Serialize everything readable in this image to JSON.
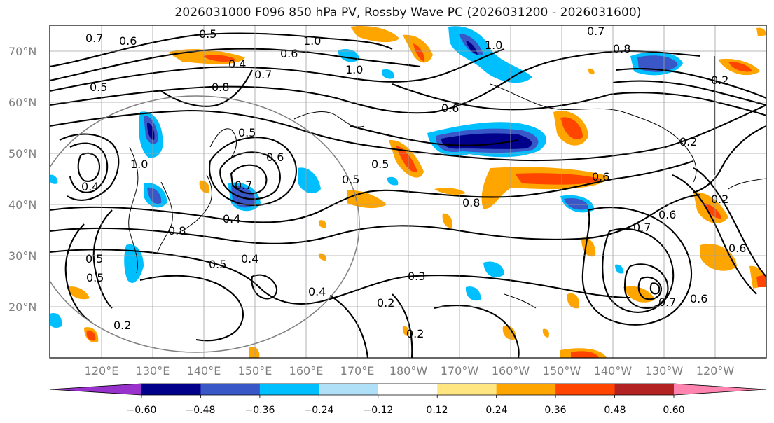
{
  "title": "2026031000 F096 850 hPa PV, Rossby Wave PC (2026031200 - 2026031600)",
  "lat_labels": [
    "70°N",
    "60°N",
    "50°N",
    "40°N",
    "30°N",
    "20°N"
  ],
  "lon_labels": [
    "120°E",
    "130°E",
    "140°E",
    "150°E",
    "160°E",
    "170°E",
    "180°W",
    "170°W",
    "160°W",
    "150°W",
    "140°W",
    "130°W",
    "120°W"
  ],
  "colorbar": {
    "ticks": [
      "−0.60",
      "−0.48",
      "−0.36",
      "−0.24",
      "−0.12",
      "0.12",
      "0.24",
      "0.36",
      "0.48",
      "0.60"
    ],
    "colors": [
      "#9932cc",
      "#00008b",
      "#3a57c8",
      "#00bfff",
      "#b0e0f8",
      "#ffffff",
      "#ffe680",
      "#ffa500",
      "#ff4500",
      "#b22222",
      "#ff85b0"
    ]
  },
  "contour_labels": [
    "0.7",
    "0.6",
    "0.5",
    "1.0",
    "0.6",
    "0.4",
    "0.7",
    "1.0",
    "1.0",
    "0.7",
    "0.8",
    "0.5",
    "0.8",
    "0.5",
    "1.0",
    "0.4",
    "0.7",
    "0.6",
    "0.5",
    "0.5",
    "0.6",
    "0.2",
    "0.4",
    "0.5",
    "0.8",
    "0.6",
    "0.5",
    "0.4",
    "0.5",
    "0.4",
    "0.3",
    "0.2",
    "0.2",
    "0.2",
    "0.7",
    "0.6",
    "0.6",
    "0.7",
    "0.2",
    "0.2",
    "0.6",
    "0.8"
  ],
  "colors": {
    "frame": "#000000",
    "grid": "#a0a0a0",
    "labels": "#808080"
  }
}
